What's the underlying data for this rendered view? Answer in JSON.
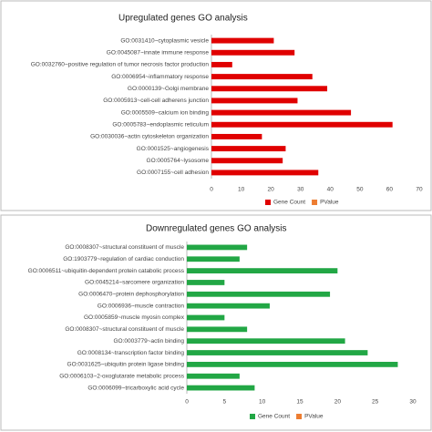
{
  "chart_data": [
    {
      "type": "barh",
      "title": "Upregulated genes GO analysis",
      "categories": [
        "GO:0031410~cytoplasmic vesicle",
        "GO:0045087~innate immune response",
        "GO:0032760~positive regulation of tumor necrosis factor production",
        "GO:0006954~inflammatory response",
        "GO:0000139~Golgi membrane",
        "GO:0005913~cell-cell adherens junction",
        "GO:0005509~calcium ion binding",
        "GO:0005783~endoplasmic reticulum",
        "GO:0030036~actin cytoskeleton organization",
        "GO:0001525~angiogenesis",
        "GO:0005764~lysosome",
        "GO:0007155~cell adhesion"
      ],
      "series": [
        {
          "name": "Gene Count",
          "color": "#e00000",
          "values": [
            21,
            28,
            7,
            34,
            39,
            29,
            47,
            61,
            17,
            25,
            24,
            36
          ]
        },
        {
          "name": "PValue",
          "color": "#ed7d31",
          "values": [
            null,
            null,
            null,
            null,
            null,
            null,
            null,
            null,
            null,
            null,
            null,
            null
          ]
        }
      ],
      "xlim": [
        0,
        70
      ],
      "xticks": [
        0,
        10,
        20,
        30,
        40,
        50,
        60,
        70
      ],
      "grid": false,
      "legend": "bottom"
    },
    {
      "type": "barh",
      "title": "Downregulated genes GO analysis",
      "categories": [
        "GO:0008307~structural constituent of muscle",
        "GO:1903779~regulation of cardiac conduction",
        "GO:0006511~ubiquitin-dependent protein catabolic process",
        "GO:0045214~sarcomere organization",
        "GO:0006470~protein dephosphorylation",
        "GO:0006936~muscle contraction",
        "GO:0005859~muscle myosin complex",
        "GO:0008307~structural constituent of muscle",
        "GO:0003779~actin binding",
        "GO:0008134~transcription factor binding",
        "GO:0031625~ubiquitin protein ligase binding",
        "GO:0006103~2-oxoglutarate metabolic process",
        "GO:0006099~tricarboxylic acid cycle"
      ],
      "series": [
        {
          "name": "Gene Count",
          "color": "#22a745",
          "values": [
            8,
            7,
            20,
            5,
            19,
            11,
            5,
            8,
            21,
            24,
            28,
            7,
            9
          ]
        },
        {
          "name": "PValue",
          "color": "#ed7d31",
          "values": [
            null,
            null,
            null,
            null,
            null,
            null,
            null,
            null,
            null,
            null,
            null,
            null,
            null
          ]
        }
      ],
      "xlim": [
        0,
        30
      ],
      "xticks": [
        0,
        5,
        10,
        15,
        20,
        25,
        30
      ],
      "grid": false,
      "legend": "bottom"
    }
  ]
}
